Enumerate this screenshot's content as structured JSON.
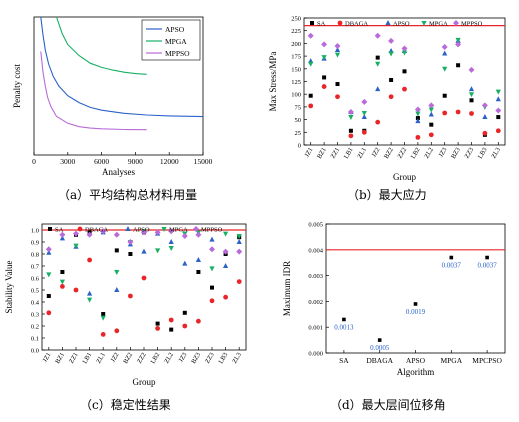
{
  "colors": {
    "SA": "#000000",
    "DBAGA": "#e8262a",
    "APSO": "#2b62c8",
    "MPGA": "#17b063",
    "MPPSO": "#b86bd9",
    "limit": "#e8262a"
  },
  "captions": {
    "a": "（a）平均结构总材料用量",
    "b": "（b）最大应力",
    "c": "（c）稳定性结果",
    "d": "（d）最大层间位移角"
  },
  "chart_data": [
    {
      "id": "a",
      "type": "line",
      "xlabel": "Analyses",
      "ylabel": "Penalty cost",
      "xlim": [
        0,
        15000
      ],
      "x_ticks": [
        "0",
        "3000",
        "6000",
        "9000",
        "12000",
        "15000"
      ],
      "legend": [
        "APSO",
        "MPGA",
        "MPPSO"
      ],
      "legend_position": "top-right",
      "series": [
        {
          "name": "APSO",
          "x": [
            600,
            800,
            1000,
            1300,
            1700,
            2200,
            3000,
            4000,
            5000,
            6000,
            8000,
            10000,
            12000,
            15000
          ],
          "y": [
            1.0,
            0.87,
            0.76,
            0.66,
            0.57,
            0.5,
            0.43,
            0.38,
            0.345,
            0.325,
            0.302,
            0.29,
            0.283,
            0.278
          ]
        },
        {
          "name": "MPGA",
          "x": [
            2000,
            2500,
            3000,
            4000,
            5000,
            6000,
            7000,
            8000,
            9000,
            10000
          ],
          "y": [
            1.0,
            0.88,
            0.8,
            0.72,
            0.665,
            0.635,
            0.615,
            0.6,
            0.59,
            0.585
          ]
        },
        {
          "name": "MPPSO",
          "x": [
            600,
            800,
            1000,
            1200,
            1500,
            2000,
            3000,
            4000,
            5000,
            6000,
            8000,
            10000
          ],
          "y": [
            0.75,
            0.6,
            0.5,
            0.42,
            0.35,
            0.28,
            0.23,
            0.205,
            0.195,
            0.19,
            0.185,
            0.183
          ]
        }
      ]
    },
    {
      "id": "b",
      "type": "scatter",
      "xlabel": "Group",
      "ylabel": "Max Stress/MPa",
      "ylim": [
        0,
        250
      ],
      "y_ticks": [
        "0",
        "25",
        "50",
        "75",
        "100",
        "125",
        "150",
        "175",
        "200",
        "225",
        "250"
      ],
      "limit_line": 235,
      "categories": [
        "JZ1",
        "BZ1",
        "ZZ1",
        "LB1",
        "ZL1",
        "JZ2",
        "BZ2",
        "ZZ2",
        "LB2",
        "ZL2",
        "JZ3",
        "BZ3",
        "ZZ3",
        "LB3",
        "ZL3"
      ],
      "legend": [
        "SA",
        "DBAGA",
        "APSO",
        "MPGA",
        "MPPSO"
      ],
      "series": [
        {
          "name": "SA",
          "marker": "square",
          "values": [
            97,
            133,
            120,
            28,
            28,
            172,
            128,
            145,
            53,
            40,
            97,
            157,
            88,
            20,
            55
          ]
        },
        {
          "name": "DBAGA",
          "marker": "circle",
          "values": [
            77,
            115,
            95,
            18,
            25,
            45,
            95,
            110,
            15,
            20,
            63,
            65,
            62,
            23,
            28
          ]
        },
        {
          "name": "APSO",
          "marker": "triangle-up",
          "values": [
            165,
            170,
            187,
            65,
            55,
            110,
            185,
            185,
            47,
            60,
            180,
            205,
            110,
            55,
            90
          ]
        },
        {
          "name": "MPGA",
          "marker": "triangle-down",
          "values": [
            160,
            173,
            178,
            55,
            63,
            160,
            180,
            182,
            62,
            70,
            150,
            207,
            100,
            75,
            105
          ]
        },
        {
          "name": "MPPSO",
          "marker": "diamond",
          "values": [
            215,
            198,
            195,
            65,
            85,
            215,
            205,
            190,
            70,
            78,
            193,
            198,
            148,
            78,
            68
          ]
        }
      ]
    },
    {
      "id": "c",
      "type": "scatter",
      "xlabel": "Group",
      "ylabel": "Stability Value",
      "ylim": [
        0,
        1.05
      ],
      "y_ticks": [
        "0.0",
        "0.1",
        "0.2",
        "0.3",
        "0.4",
        "0.5",
        "0.6",
        "0.7",
        "0.8",
        "0.9",
        "1.0"
      ],
      "limit_line": 1.0,
      "categories": [
        "JZ1",
        "BZ1",
        "ZZ1",
        "LB1",
        "ZL1",
        "JZ2",
        "BZ2",
        "ZZ2",
        "LB2",
        "ZL2",
        "JZ3",
        "BZ3",
        "ZZ3",
        "LB3",
        "ZL3"
      ],
      "legend": [
        "SA",
        "DBAGA",
        "APSO",
        "MPGA",
        "MPPSO"
      ],
      "series": [
        {
          "name": "SA",
          "marker": "square",
          "values": [
            0.45,
            0.65,
            0.96,
            0.98,
            0.3,
            0.83,
            0.8,
            0.98,
            0.22,
            0.17,
            0.31,
            0.65,
            0.52,
            0.8,
            0.94
          ]
        },
        {
          "name": "DBAGA",
          "marker": "circle",
          "values": [
            0.31,
            0.53,
            0.5,
            0.75,
            0.13,
            0.16,
            0.45,
            0.6,
            0.18,
            0.25,
            0.2,
            0.24,
            0.41,
            0.44,
            0.57
          ]
        },
        {
          "name": "APSO",
          "marker": "triangle-up",
          "values": [
            0.81,
            0.93,
            0.86,
            0.47,
            0.98,
            0.5,
            0.88,
            0.82,
            0.97,
            0.9,
            0.72,
            0.75,
            0.92,
            0.7,
            0.9
          ]
        },
        {
          "name": "MPGA",
          "marker": "triangle-down",
          "values": [
            0.63,
            0.57,
            0.87,
            0.42,
            0.27,
            0.65,
            0.9,
            0.99,
            0.83,
            0.85,
            0.97,
            0.98,
            0.68,
            0.97,
            0.95
          ]
        },
        {
          "name": "MPPSO",
          "marker": "diamond",
          "values": [
            0.84,
            0.96,
            0.97,
            0.96,
            0.99,
            0.96,
            0.9,
            0.98,
            0.98,
            0.99,
            0.95,
            0.96,
            0.84,
            0.82,
            0.82
          ]
        }
      ]
    },
    {
      "id": "d",
      "type": "scatter",
      "xlabel": "Algorithm",
      "ylabel": "Maximum IDR",
      "ylim": [
        0,
        0.005
      ],
      "y_ticks": [
        "0.000",
        "0.001",
        "0.002",
        "0.003",
        "0.004",
        "0.005"
      ],
      "limit_line": 0.004,
      "categories": [
        "SA",
        "DBAGA",
        "APSO",
        "MPGA",
        "MPCPSO"
      ],
      "values": [
        0.0013,
        0.0005,
        0.0019,
        0.0037,
        0.0037
      ],
      "labels": [
        "0.0013",
        "0.0005",
        "0.0019",
        "0.0037",
        "0.0037"
      ],
      "marker": "square"
    }
  ]
}
